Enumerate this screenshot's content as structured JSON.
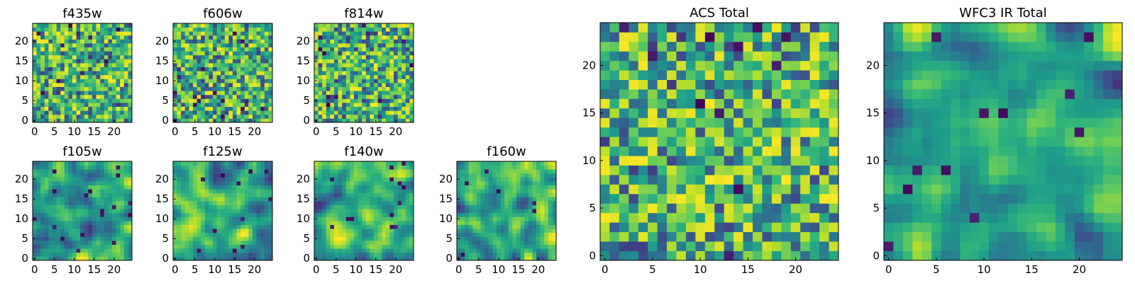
{
  "chart_data": [
    {
      "type": "heatmap",
      "title": "f435w",
      "grid_size": 25,
      "xlim": [
        0,
        24
      ],
      "ylim": [
        0,
        24
      ],
      "xticks": [
        "0",
        "5",
        "10",
        "15",
        "20"
      ],
      "yticks": [
        "0",
        "5",
        "10",
        "15",
        "20"
      ],
      "colormap": "viridis",
      "pattern": "noise",
      "seed": 11
    },
    {
      "type": "heatmap",
      "title": "f606w",
      "grid_size": 25,
      "xlim": [
        0,
        24
      ],
      "ylim": [
        0,
        24
      ],
      "xticks": [
        "0",
        "5",
        "10",
        "15",
        "20"
      ],
      "yticks": [
        "0",
        "5",
        "10",
        "15",
        "20"
      ],
      "colormap": "viridis",
      "pattern": "noise",
      "seed": 23
    },
    {
      "type": "heatmap",
      "title": "f814w",
      "grid_size": 25,
      "xlim": [
        0,
        24
      ],
      "ylim": [
        0,
        24
      ],
      "xticks": [
        "0",
        "5",
        "10",
        "15",
        "20"
      ],
      "yticks": [
        "0",
        "5",
        "10",
        "15",
        "20"
      ],
      "colormap": "viridis",
      "pattern": "noise",
      "seed": 37
    },
    {
      "type": "heatmap",
      "title": "f105w",
      "grid_size": 25,
      "xlim": [
        0,
        24
      ],
      "ylim": [
        0,
        24
      ],
      "xticks": [
        "0",
        "5",
        "10",
        "15",
        "20"
      ],
      "yticks": [
        "0",
        "5",
        "10",
        "15",
        "20"
      ],
      "colormap": "viridis",
      "pattern": "smooth",
      "seed": 41
    },
    {
      "type": "heatmap",
      "title": "f125w",
      "grid_size": 25,
      "xlim": [
        0,
        24
      ],
      "ylim": [
        0,
        24
      ],
      "xticks": [
        "0",
        "5",
        "10",
        "15",
        "20"
      ],
      "yticks": [
        "0",
        "5",
        "10",
        "15",
        "20"
      ],
      "colormap": "viridis",
      "pattern": "smooth",
      "seed": 53
    },
    {
      "type": "heatmap",
      "title": "f140w",
      "grid_size": 25,
      "xlim": [
        0,
        24
      ],
      "ylim": [
        0,
        24
      ],
      "xticks": [
        "0",
        "5",
        "10",
        "15",
        "20"
      ],
      "yticks": [
        "0",
        "5",
        "10",
        "15",
        "20"
      ],
      "colormap": "viridis",
      "pattern": "smooth",
      "seed": 67
    },
    {
      "type": "heatmap",
      "title": "f160w",
      "grid_size": 25,
      "xlim": [
        0,
        24
      ],
      "ylim": [
        0,
        24
      ],
      "xticks": [
        "0",
        "5",
        "10",
        "15",
        "20"
      ],
      "yticks": [
        "0",
        "5",
        "10",
        "15",
        "20"
      ],
      "colormap": "viridis",
      "pattern": "smooth",
      "seed": 79
    },
    {
      "type": "heatmap",
      "title": "ACS Total",
      "grid_size": 25,
      "xlim": [
        0,
        24
      ],
      "ylim": [
        0,
        24
      ],
      "xticks": [
        "0",
        "5",
        "10",
        "15",
        "20"
      ],
      "yticks": [
        "0",
        "5",
        "10",
        "15",
        "20"
      ],
      "colormap": "viridis",
      "pattern": "noise",
      "seed": 97
    },
    {
      "type": "heatmap",
      "title": "WFC3 IR Total",
      "grid_size": 25,
      "xlim": [
        0,
        24
      ],
      "ylim": [
        0,
        24
      ],
      "xticks": [
        "0",
        "5",
        "10",
        "15",
        "20"
      ],
      "yticks": [
        "0",
        "5",
        "10",
        "15",
        "20"
      ],
      "colormap": "viridis",
      "pattern": "smooth",
      "seed": 113
    }
  ]
}
